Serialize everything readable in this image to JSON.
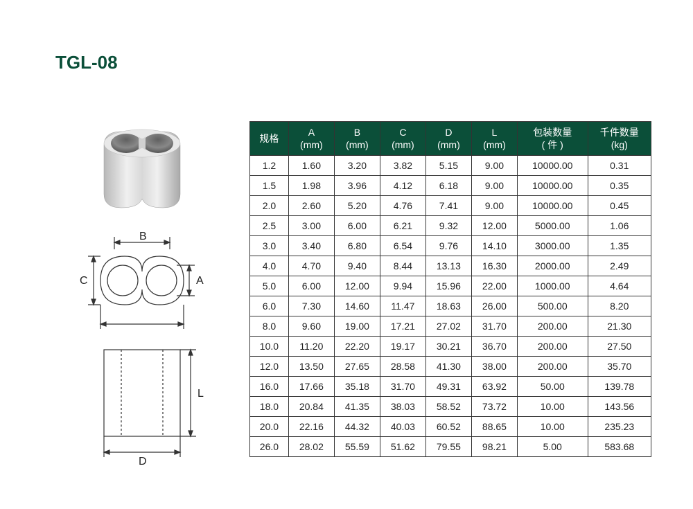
{
  "title": "TGL-08",
  "title_color": "#0b4f39",
  "table": {
    "header_bg": "#0b4f39",
    "header_color": "#ffffff",
    "border_color": "#333333",
    "columns": [
      {
        "line1": "规格",
        "line2": ""
      },
      {
        "line1": "A",
        "line2": "(mm)"
      },
      {
        "line1": "B",
        "line2": "(mm)"
      },
      {
        "line1": "C",
        "line2": "(mm)"
      },
      {
        "line1": "D",
        "line2": "(mm)"
      },
      {
        "line1": "L",
        "line2": "(mm)"
      },
      {
        "line1": "包装数量",
        "line2": "( 件 )"
      },
      {
        "line1": "千件数量",
        "line2": "(kg)"
      }
    ],
    "rows": [
      [
        "1.2",
        "1.60",
        "3.20",
        "3.82",
        "5.15",
        "9.00",
        "10000.00",
        "0.31"
      ],
      [
        "1.5",
        "1.98",
        "3.96",
        "4.12",
        "6.18",
        "9.00",
        "10000.00",
        "0.35"
      ],
      [
        "2.0",
        "2.60",
        "5.20",
        "4.76",
        "7.41",
        "9.00",
        "10000.00",
        "0.45"
      ],
      [
        "2.5",
        "3.00",
        "6.00",
        "6.21",
        "9.32",
        "12.00",
        "5000.00",
        "1.06"
      ],
      [
        "3.0",
        "3.40",
        "6.80",
        "6.54",
        "9.76",
        "14.10",
        "3000.00",
        "1.35"
      ],
      [
        "4.0",
        "4.70",
        "9.40",
        "8.44",
        "13.13",
        "16.30",
        "2000.00",
        "2.49"
      ],
      [
        "5.0",
        "6.00",
        "12.00",
        "9.94",
        "15.96",
        "22.00",
        "1000.00",
        "4.64"
      ],
      [
        "6.0",
        "7.30",
        "14.60",
        "11.47",
        "18.63",
        "26.00",
        "500.00",
        "8.20"
      ],
      [
        "8.0",
        "9.60",
        "19.00",
        "17.21",
        "27.02",
        "31.70",
        "200.00",
        "21.30"
      ],
      [
        "10.0",
        "11.20",
        "22.20",
        "19.17",
        "30.21",
        "36.70",
        "200.00",
        "27.50"
      ],
      [
        "12.0",
        "13.50",
        "27.65",
        "28.58",
        "41.30",
        "38.00",
        "200.00",
        "35.70"
      ],
      [
        "16.0",
        "17.66",
        "35.18",
        "31.70",
        "49.31",
        "63.92",
        "50.00",
        "139.78"
      ],
      [
        "18.0",
        "20.84",
        "41.35",
        "38.03",
        "58.52",
        "73.72",
        "10.00",
        "143.56"
      ],
      [
        "20.0",
        "22.16",
        "44.32",
        "40.03",
        "60.52",
        "88.65",
        "10.00",
        "235.23"
      ],
      [
        "26.0",
        "28.02",
        "55.59",
        "51.62",
        "79.55",
        "98.21",
        "5.00",
        "583.68"
      ]
    ],
    "col_widths": [
      "55",
      "65",
      "65",
      "65",
      "65",
      "65",
      "100",
      "90"
    ]
  },
  "diagram": {
    "labels": {
      "A": "A",
      "B": "B",
      "C": "C",
      "D": "D",
      "L": "L"
    },
    "line_color": "#333333"
  }
}
